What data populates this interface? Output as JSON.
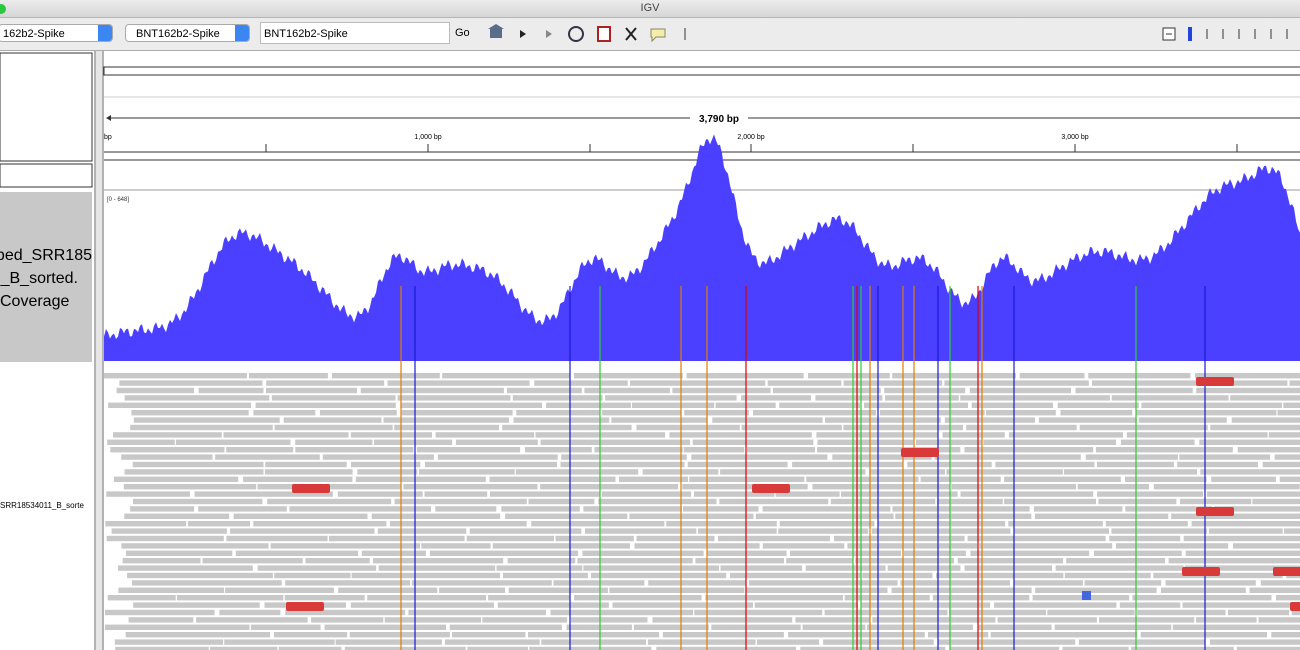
{
  "window": {
    "title": "IGV"
  },
  "toolbar": {
    "genome": "162b2-Spike",
    "chromosome": "BNT162b2-Spike",
    "locus": "BNT162b2-Spike",
    "go": "Go"
  },
  "ruler": {
    "span": "3,790 bp",
    "labels": [
      "bp",
      "1,000 bp",
      "2,000 bp",
      "3,000 bp"
    ]
  },
  "tracks": [
    {
      "name_lines": [
        "ped_SRR185",
        "_B_sorted.",
        "Coverage"
      ],
      "data_range": "[0 - 648]"
    },
    {
      "name": "SRR18534011_B_sorte"
    }
  ]
}
